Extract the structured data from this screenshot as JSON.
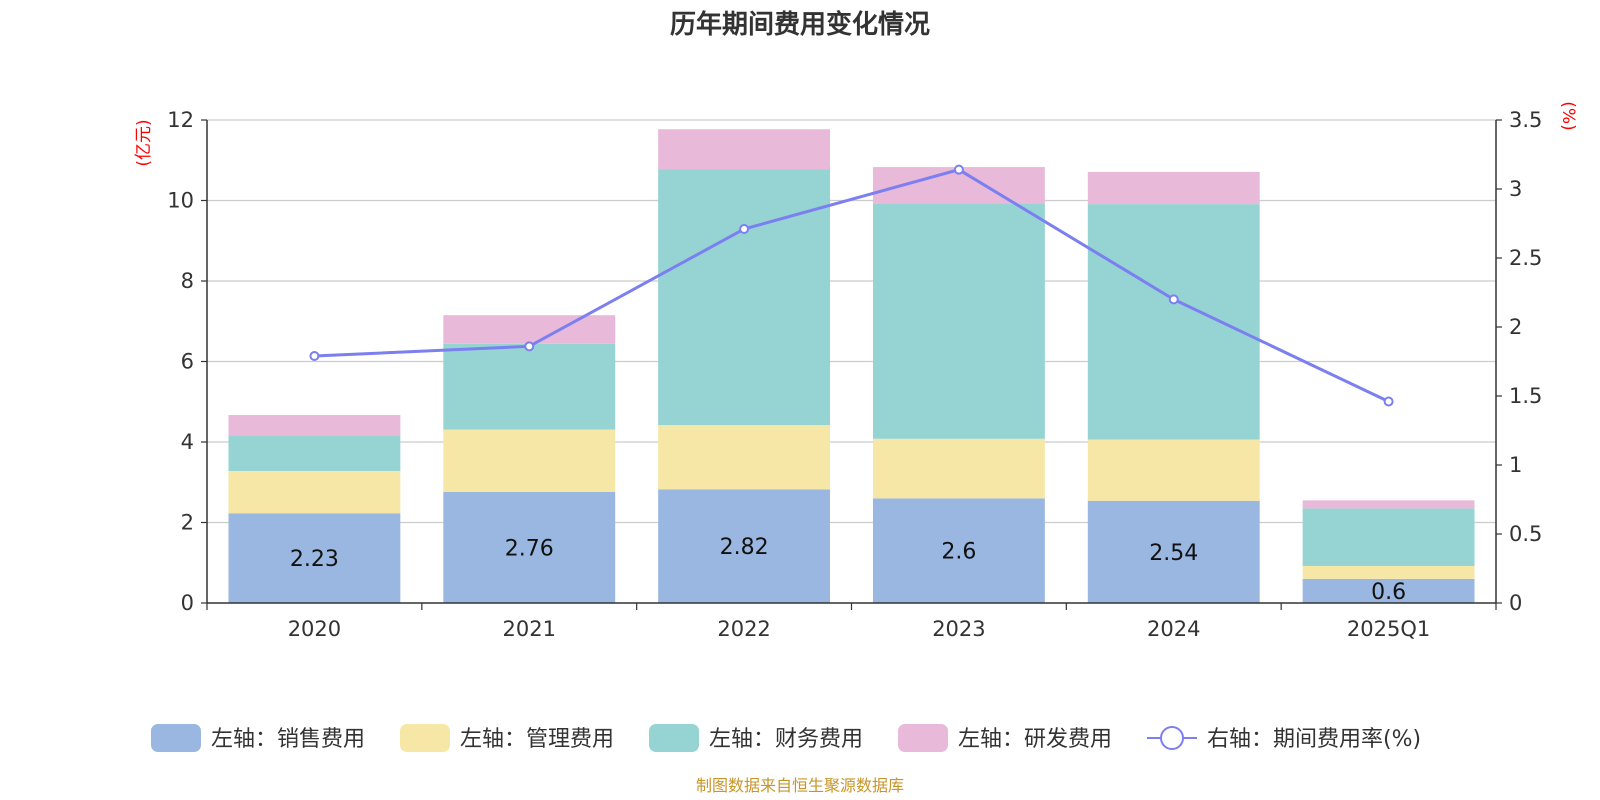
{
  "chart_data": {
    "type": "bar",
    "title": "历年期间费用变化情况",
    "categories": [
      "2020",
      "2021",
      "2022",
      "2023",
      "2024",
      "2025Q1"
    ],
    "left_axis": {
      "unit": "(亿元)",
      "ylim": [
        0,
        12
      ],
      "ticks": [
        0,
        2,
        4,
        6,
        8,
        10,
        12
      ]
    },
    "right_axis": {
      "unit": "(%)",
      "ylim": [
        0,
        3.5
      ],
      "ticks": [
        "0",
        "0.5",
        "1",
        "1.5",
        "2",
        "2.5",
        "3",
        "3.5"
      ]
    },
    "series": [
      {
        "name": "左轴：销售费用",
        "axis": "left",
        "color": "#9ab7e1",
        "values": [
          2.23,
          2.76,
          2.82,
          2.6,
          2.54,
          0.6
        ],
        "labels": [
          "2.23",
          "2.76",
          "2.82",
          "2.6",
          "2.54",
          "0.6"
        ]
      },
      {
        "name": "左轴：管理费用",
        "axis": "left",
        "color": "#f7e7a6",
        "values": [
          1.05,
          1.55,
          1.6,
          1.48,
          1.52,
          0.32
        ]
      },
      {
        "name": "左轴：财务费用",
        "axis": "left",
        "color": "#96d4d4",
        "values": [
          0.88,
          2.13,
          6.35,
          5.85,
          5.85,
          1.43
        ]
      },
      {
        "name": "左轴：研发费用",
        "axis": "left",
        "color": "#e8b9d9",
        "values": [
          0.51,
          0.71,
          1.0,
          0.9,
          0.8,
          0.2
        ]
      },
      {
        "name": "右轴：期间费用率(%)",
        "axis": "right",
        "type": "line",
        "color": "#7b7ff0",
        "values": [
          1.79,
          1.86,
          2.71,
          3.14,
          2.2,
          1.46
        ]
      }
    ],
    "legend_position": "bottom",
    "grid": true
  },
  "source_note": "制图数据来自恒生聚源数据库"
}
